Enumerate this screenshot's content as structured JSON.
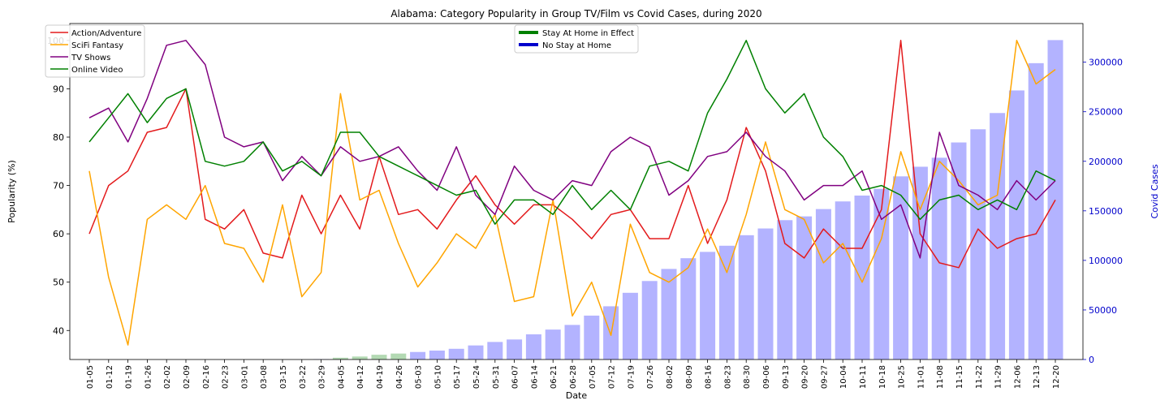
{
  "chart_data": {
    "type": "bar+line",
    "title": "Alabama: Category Popularity in Group TV/Film vs Covid Cases, during 2020",
    "xlabel": "Date",
    "ylabel": "Popularity (%)",
    "y2label": "Covid Cases",
    "ylim": [
      34,
      103.5
    ],
    "yticks": [
      "40",
      "50",
      "60",
      "70",
      "80",
      "90",
      "100"
    ],
    "y2lim": [
      0,
      339000
    ],
    "y2ticks": [
      "0",
      "50000",
      "100000",
      "150000",
      "200000",
      "250000",
      "300000"
    ],
    "categories": [
      "01-05",
      "01-12",
      "01-19",
      "01-26",
      "02-02",
      "02-09",
      "02-16",
      "02-23",
      "03-01",
      "03-08",
      "03-15",
      "03-22",
      "03-29",
      "04-05",
      "04-12",
      "04-19",
      "04-26",
      "05-03",
      "05-10",
      "05-17",
      "05-24",
      "05-31",
      "06-07",
      "06-14",
      "06-21",
      "06-28",
      "07-05",
      "07-12",
      "07-19",
      "07-26",
      "08-02",
      "08-09",
      "08-16",
      "08-23",
      "08-30",
      "09-06",
      "09-13",
      "09-20",
      "09-27",
      "10-04",
      "10-11",
      "10-18",
      "10-25",
      "11-01",
      "11-08",
      "11-15",
      "11-22",
      "11-29",
      "12-06",
      "12-13",
      "12-20"
    ],
    "series": [
      {
        "name": "Action/Adventure",
        "color": "#e31a1c",
        "values": [
          60,
          70,
          73,
          81,
          82,
          90,
          63,
          61,
          65,
          56,
          55,
          68,
          60,
          68,
          61,
          76,
          64,
          65,
          61,
          67,
          72,
          66,
          62,
          66,
          66,
          63,
          59,
          64,
          65,
          59,
          59,
          70,
          58,
          67,
          82,
          73,
          58,
          55,
          61,
          57,
          57,
          65,
          100,
          60,
          54,
          53,
          61,
          57,
          59,
          60,
          67
        ]
      },
      {
        "name": "SciFi Fantasy",
        "color": "#ffa500",
        "values": [
          73,
          51,
          37,
          63,
          66,
          63,
          70,
          58,
          57,
          50,
          66,
          47,
          52,
          89,
          67,
          69,
          58,
          49,
          54,
          60,
          57,
          64,
          46,
          47,
          67,
          43,
          50,
          39,
          62,
          52,
          50,
          53,
          61,
          52,
          64,
          79,
          65,
          63,
          54,
          58,
          50,
          59,
          77,
          65,
          75,
          71,
          66,
          68,
          100,
          91,
          94
        ]
      },
      {
        "name": "TV Shows",
        "color": "#800080",
        "values": [
          84,
          86,
          79,
          88,
          99,
          100,
          95,
          80,
          78,
          79,
          71,
          76,
          72,
          78,
          75,
          76,
          78,
          73,
          69,
          78,
          68,
          64,
          74,
          69,
          67,
          71,
          70,
          77,
          80,
          78,
          68,
          71,
          76,
          77,
          81,
          76,
          73,
          67,
          70,
          70,
          73,
          63,
          66,
          55,
          81,
          70,
          68,
          65,
          71,
          67,
          71
        ]
      },
      {
        "name": "Online Video",
        "color": "#008000",
        "values": [
          79,
          84,
          89,
          83,
          88,
          90,
          75,
          74,
          75,
          79,
          73,
          75,
          72,
          81,
          81,
          76,
          74,
          72,
          70,
          68,
          69,
          62,
          67,
          67,
          64,
          70,
          65,
          69,
          65,
          74,
          75,
          73,
          85,
          92,
          100,
          90,
          85,
          89,
          80,
          76,
          69,
          70,
          68,
          63,
          67,
          68,
          65,
          67,
          65,
          73,
          71
        ]
      }
    ],
    "covid_cases": [
      0,
      0,
      0,
      0,
      0,
      0,
      0,
      0,
      0,
      0,
      0,
      0,
      400,
      1800,
      3000,
      4800,
      6000,
      7600,
      9000,
      10800,
      14200,
      17700,
      20200,
      25400,
      30200,
      34900,
      44300,
      53700,
      67300,
      79200,
      91400,
      102200,
      108600,
      114800,
      125400,
      132200,
      140600,
      144400,
      151800,
      159500,
      165400,
      172200,
      184800,
      194500,
      203600,
      219000,
      232300,
      248700,
      271500,
      299000,
      322300
    ],
    "bar_colors": {
      "stay_at_home": "#b3d9b3",
      "no_stay_at_home": "#b3b3ff"
    },
    "stay_at_home_range": [
      "04-05",
      "04-26"
    ],
    "legend1": [
      {
        "label": "Action/Adventure",
        "color": "#e31a1c"
      },
      {
        "label": "SciFi Fantasy",
        "color": "#ffa500"
      },
      {
        "label": "TV Shows",
        "color": "#800080"
      },
      {
        "label": "Online Video",
        "color": "#008000"
      }
    ],
    "legend2": [
      {
        "label": "Stay At Home in Effect",
        "color": "#008000"
      },
      {
        "label": "No Stay at Home",
        "color": "#0000cc"
      }
    ],
    "legend1_position": "top-left",
    "legend2_position": "top-center",
    "grid": false
  }
}
